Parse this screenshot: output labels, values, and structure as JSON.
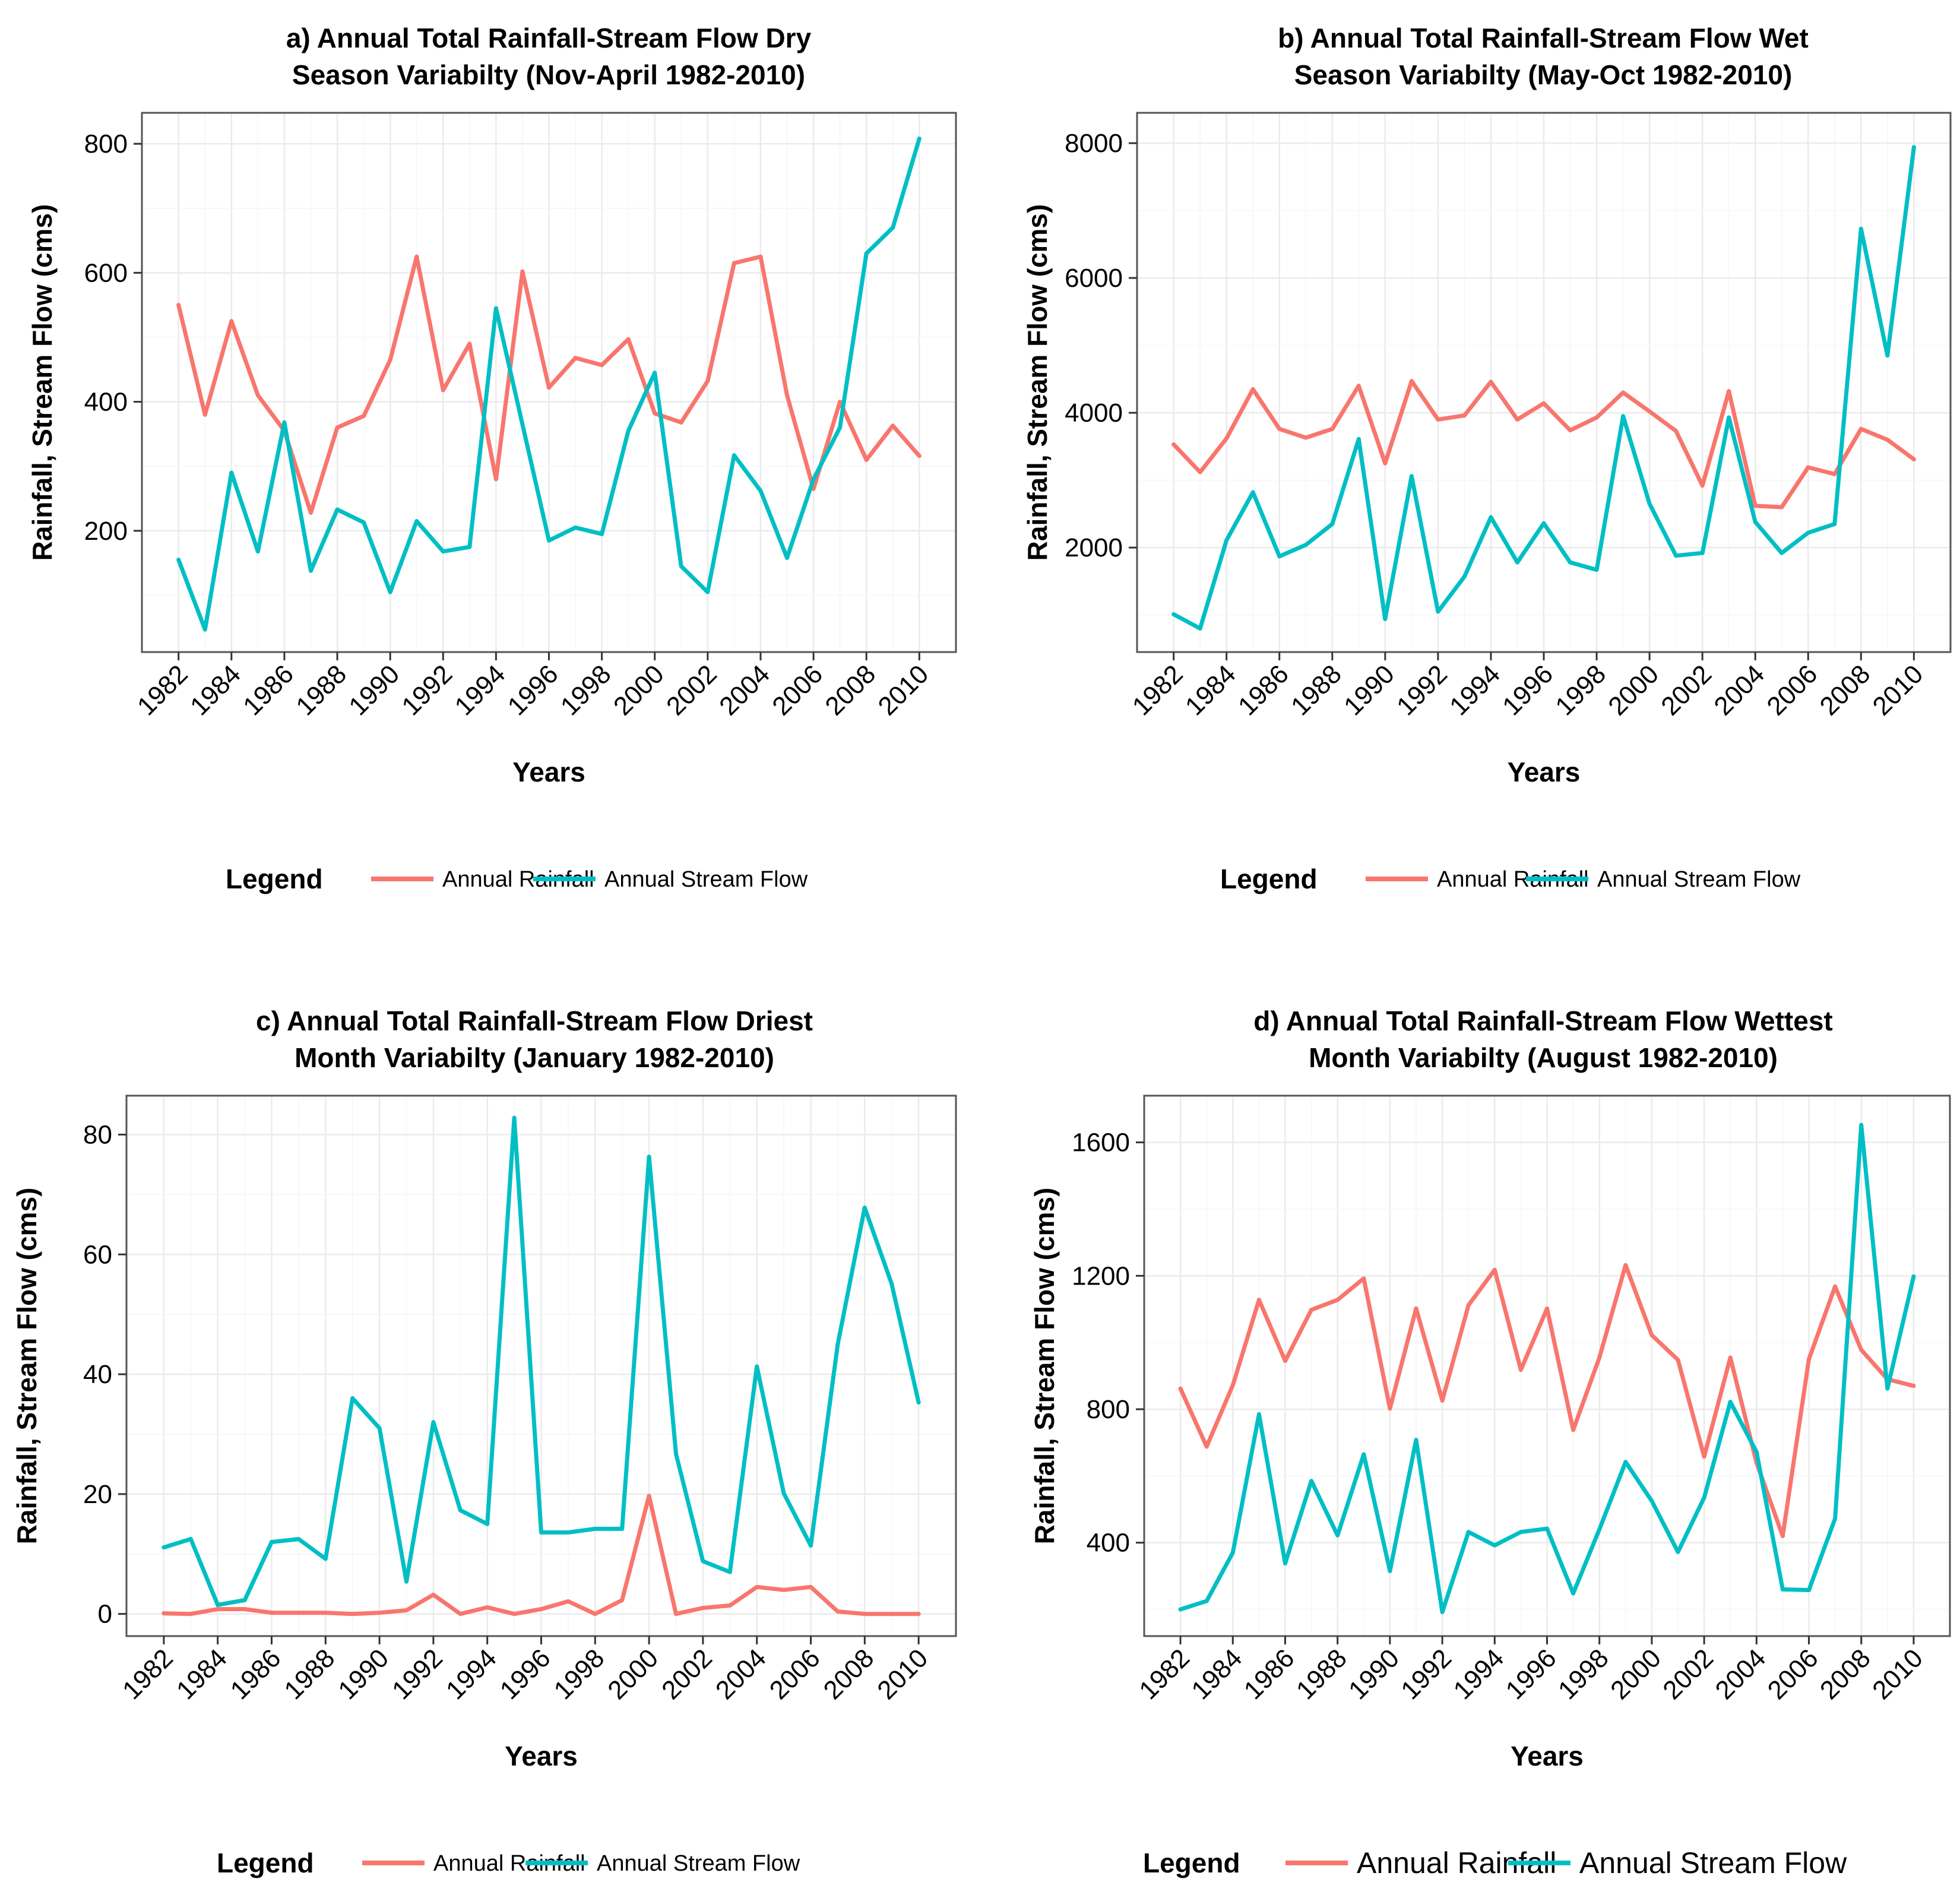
{
  "chart_data": [
    {
      "id": "a",
      "type": "line",
      "title_lines": [
        "a) Annual Total  Rainfall-Stream Flow Dry",
        "Season Variabilty (Nov-April 1982-2010)"
      ],
      "xlabel": "Years",
      "ylabel": "Rainfall, Stream Flow (cms)",
      "x": [
        1982,
        1983,
        1984,
        1985,
        1986,
        1987,
        1988,
        1989,
        1990,
        1991,
        1992,
        1993,
        1994,
        1995,
        1996,
        1997,
        1998,
        1999,
        2000,
        2001,
        2002,
        2003,
        2004,
        2005,
        2006,
        2007,
        2008,
        2009,
        2010
      ],
      "xticks": [
        "1982",
        "1984",
        "1986",
        "1988",
        "1990",
        "1992",
        "1994",
        "1996",
        "1998",
        "2000",
        "2002",
        "2004",
        "2006",
        "2008",
        "2010"
      ],
      "yticks": [
        200,
        400,
        600,
        800
      ],
      "ylim": [
        12,
        848
      ],
      "series": [
        {
          "name": "Annual Rainfall",
          "color": "#f8766d",
          "values": [
            550,
            380,
            525,
            410,
            355,
            228,
            360,
            378,
            465,
            625,
            418,
            490,
            280,
            602,
            422,
            468,
            457,
            497,
            382,
            368,
            432,
            615,
            625,
            410,
            265,
            400,
            310,
            363,
            316
          ]
        },
        {
          "name": "Annual Stream Flow",
          "color": "#00bfc4",
          "values": [
            155,
            47,
            290,
            168,
            368,
            138,
            233,
            213,
            105,
            215,
            168,
            175,
            545,
            365,
            185,
            205,
            195,
            355,
            445,
            145,
            105,
            317,
            262,
            158,
            280,
            360,
            630,
            670,
            808
          ]
        }
      ],
      "legend_title": "Legend"
    },
    {
      "id": "b",
      "type": "line",
      "title_lines": [
        "b) Annual Total  Rainfall-Stream Flow Wet",
        "Season Variabilty (May-Oct 1982-2010)"
      ],
      "xlabel": "Years",
      "ylabel": "Rainfall, Stream Flow (cms)",
      "x": [
        1982,
        1983,
        1984,
        1985,
        1986,
        1987,
        1988,
        1989,
        1990,
        1991,
        1992,
        1993,
        1994,
        1995,
        1996,
        1997,
        1998,
        1999,
        2000,
        2001,
        2002,
        2003,
        2004,
        2005,
        2006,
        2007,
        2008,
        2009,
        2010
      ],
      "xticks": [
        "1982",
        "1984",
        "1986",
        "1988",
        "1990",
        "1992",
        "1994",
        "1996",
        "1998",
        "2000",
        "2002",
        "2004",
        "2006",
        "2008",
        "2010"
      ],
      "yticks": [
        2000,
        4000,
        6000,
        8000
      ],
      "ylim": [
        450,
        8450
      ],
      "series": [
        {
          "name": "Annual Rainfall",
          "color": "#f8766d",
          "values": [
            3530,
            3120,
            3620,
            4350,
            3760,
            3630,
            3760,
            4400,
            3250,
            4470,
            3900,
            3960,
            4460,
            3900,
            4140,
            3740,
            3930,
            4300,
            4020,
            3730,
            2920,
            4320,
            2620,
            2600,
            3190,
            3090,
            3760,
            3600,
            3310
          ]
        },
        {
          "name": "Annual Stream Flow",
          "color": "#00bfc4",
          "values": [
            1010,
            800,
            2110,
            2820,
            1870,
            2040,
            2350,
            3610,
            940,
            3060,
            1050,
            1570,
            2450,
            1780,
            2360,
            1780,
            1670,
            3950,
            2650,
            1880,
            1920,
            3930,
            2380,
            1920,
            2220,
            2350,
            6730,
            4850,
            7940
          ]
        }
      ],
      "legend_title": "Legend"
    },
    {
      "id": "c",
      "type": "line",
      "title_lines": [
        "c) Annual Total  Rainfall-Stream Flow Driest",
        "Month Variabilty (January 1982-2010)"
      ],
      "xlabel": "Years",
      "ylabel": "Rainfall, Stream Flow (cms)",
      "x": [
        1982,
        1983,
        1984,
        1985,
        1986,
        1987,
        1988,
        1989,
        1990,
        1991,
        1992,
        1993,
        1994,
        1995,
        1996,
        1997,
        1998,
        1999,
        2000,
        2001,
        2002,
        2003,
        2004,
        2005,
        2006,
        2007,
        2008,
        2009,
        2010
      ],
      "xticks": [
        "1982",
        "1984",
        "1986",
        "1988",
        "1990",
        "1992",
        "1994",
        "1996",
        "1998",
        "2000",
        "2002",
        "2004",
        "2006",
        "2008",
        "2010"
      ],
      "yticks": [
        0,
        20,
        40,
        60,
        80
      ],
      "ylim": [
        -3.7,
        86.5
      ],
      "series": [
        {
          "name": "Annual Rainfall",
          "color": "#f8766d",
          "values": [
            0.1,
            0,
            0.8,
            0.8,
            0.2,
            0.2,
            0.2,
            0,
            0.2,
            0.6,
            3.2,
            0,
            1.1,
            0,
            0.8,
            2.1,
            0,
            2.3,
            19.7,
            0,
            1,
            1.4,
            4.5,
            4,
            4.5,
            0.4,
            0,
            0,
            0
          ]
        },
        {
          "name": "Annual Stream Flow",
          "color": "#00bfc4",
          "values": [
            11.1,
            12.5,
            1.5,
            2.3,
            12,
            12.5,
            9.2,
            36,
            31,
            5.4,
            32,
            17.3,
            15,
            82.8,
            13.6,
            13.6,
            14.2,
            14.2,
            76.3,
            26.7,
            8.8,
            7,
            41.3,
            20.1,
            11.4,
            45,
            67.8,
            55.1,
            35.3
          ]
        }
      ],
      "legend_title": "Legend"
    },
    {
      "id": "d",
      "type": "line",
      "title_lines": [
        "d) Annual Total  Rainfall-Stream Flow Wettest",
        "Month Variabilty (August 1982-2010)"
      ],
      "xlabel": "Years",
      "ylabel": "Rainfall, Stream Flow (cms)",
      "x": [
        1982,
        1983,
        1984,
        1985,
        1986,
        1987,
        1988,
        1989,
        1990,
        1991,
        1992,
        1993,
        1994,
        1995,
        1996,
        1997,
        1998,
        1999,
        2000,
        2001,
        2002,
        2003,
        2004,
        2005,
        2006,
        2007,
        2008,
        2009,
        2010
      ],
      "xticks": [
        "1982",
        "1984",
        "1986",
        "1988",
        "1990",
        "1992",
        "1994",
        "1996",
        "1998",
        "2000",
        "2002",
        "2004",
        "2006",
        "2008",
        "2010"
      ],
      "yticks": [
        400,
        800,
        1200,
        1600
      ],
      "ylim": [
        120,
        1740
      ],
      "series": [
        {
          "name": "Annual Rainfall",
          "color": "#f8766d",
          "values": [
            862,
            688,
            872,
            1128,
            945,
            1098,
            1128,
            1192,
            802,
            1102,
            826,
            1112,
            1218,
            918,
            1102,
            738,
            955,
            1232,
            1022,
            948,
            658,
            955,
            640,
            420,
            950,
            1168,
            978,
            890,
            870
          ]
        },
        {
          "name": "Annual Stream Flow",
          "color": "#00bfc4",
          "values": [
            200,
            225,
            370,
            785,
            338,
            585,
            422,
            665,
            315,
            708,
            192,
            432,
            392,
            432,
            442,
            248,
            440,
            642,
            525,
            372,
            535,
            822,
            672,
            260,
            258,
            472,
            1652,
            862,
            1198
          ]
        }
      ],
      "legend_title": "Legend"
    }
  ]
}
